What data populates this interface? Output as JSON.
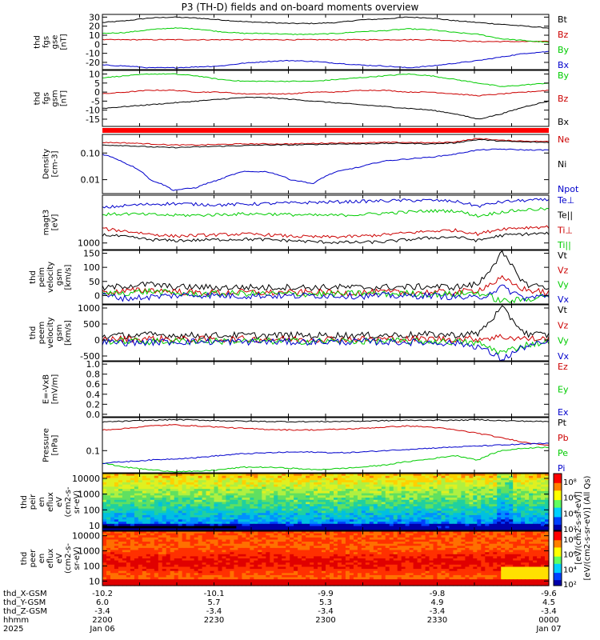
{
  "title": "P3 (TH-D) fields and on-board moments overview",
  "chart_data": [
    {
      "type": "line",
      "ylabel": [
        "thd",
        "fgs",
        "gse",
        "[nT]"
      ],
      "ylim": [
        -28,
        33
      ],
      "log": false,
      "ticks": [
        30,
        20,
        10,
        0,
        -10,
        -20
      ],
      "tick_labels": [
        "30",
        "20",
        "10",
        "0",
        "-10",
        "-20"
      ],
      "legend": [
        "Bt",
        "Bz",
        "By",
        "Bx"
      ],
      "series": [
        {
          "name": "Bt",
          "color": "#000000",
          "values": [
            24,
            26,
            29,
            30,
            29,
            27,
            25,
            24,
            23,
            23,
            24,
            27,
            28,
            30,
            29,
            26,
            24,
            22,
            20,
            18
          ]
        },
        {
          "name": "Bz",
          "color": "#cc0000",
          "values": [
            5,
            5,
            5,
            5,
            5,
            5,
            5,
            5,
            5,
            5,
            5,
            5,
            5,
            5,
            5,
            4,
            3,
            3,
            3,
            3
          ]
        },
        {
          "name": "By",
          "color": "#00cc00",
          "values": [
            12,
            13,
            16,
            18,
            17,
            14,
            12,
            12,
            11,
            11,
            12,
            14,
            15,
            17,
            16,
            13,
            11,
            6,
            4,
            2
          ]
        },
        {
          "name": "Bx",
          "color": "#0000cc",
          "values": [
            -23,
            -24,
            -26,
            -26,
            -25,
            -24,
            -21,
            -19,
            -18,
            -19,
            -21,
            -23,
            -24,
            -26,
            -24,
            -21,
            -18,
            -14,
            -10,
            -8
          ]
        }
      ]
    },
    {
      "type": "line",
      "ylabel": [
        "thd",
        "fgs",
        "gsm",
        "[nT]"
      ],
      "ylim": [
        -19,
        12
      ],
      "log": false,
      "ticks": [
        10,
        5,
        0,
        -5,
        -10,
        -15
      ],
      "tick_labels": [
        "10",
        "5",
        "0",
        "-5",
        "-10",
        "-15"
      ],
      "legend": [
        "By",
        "Bz",
        "Bx"
      ],
      "series": [
        {
          "name": "By",
          "color": "#00cc00",
          "values": [
            8,
            9,
            10,
            10,
            9,
            7,
            6,
            6,
            6,
            6,
            7,
            8,
            9,
            10,
            9,
            7,
            5,
            3,
            4,
            5
          ]
        },
        {
          "name": "Bz",
          "color": "#cc0000",
          "values": [
            -1,
            0,
            1,
            1,
            0,
            0,
            -1,
            -1,
            -1,
            0,
            0,
            1,
            1,
            0,
            0,
            -1,
            -2,
            -1,
            0,
            1
          ]
        },
        {
          "name": "Bx",
          "color": "#000000",
          "values": [
            -9,
            -8,
            -7,
            -6,
            -5,
            -4,
            -3,
            -3,
            -4,
            -5,
            -6,
            -7,
            -8,
            -9,
            -10,
            -12,
            -15,
            -12,
            -8,
            -5
          ]
        }
      ]
    },
    {
      "type": "line",
      "ylabel": [
        "Density",
        "[cm-3]"
      ],
      "ylim": [
        0.003,
        0.5
      ],
      "log": true,
      "ticks": [
        0.1,
        0.01
      ],
      "tick_labels": [
        "0.10",
        "0.01"
      ],
      "legend": [
        "Ne",
        "Ni",
        "Npot"
      ],
      "series": [
        {
          "name": "Ne",
          "color": "#cc0000",
          "values": [
            0.25,
            0.24,
            0.22,
            0.2,
            0.2,
            0.21,
            0.22,
            0.22,
            0.22,
            0.23,
            0.24,
            0.24,
            0.25,
            0.25,
            0.24,
            0.26,
            0.35,
            0.3,
            0.28,
            0.27
          ]
        },
        {
          "name": "Ni",
          "color": "#000000",
          "values": [
            0.2,
            0.19,
            0.17,
            0.16,
            0.17,
            0.18,
            0.19,
            0.2,
            0.2,
            0.21,
            0.22,
            0.22,
            0.23,
            0.23,
            0.22,
            0.24,
            0.32,
            0.28,
            0.26,
            0.25
          ]
        },
        {
          "name": "Npot",
          "color": "#0000cc",
          "values": [
            0.09,
            0.04,
            0.01,
            0.004,
            0.005,
            0.01,
            0.02,
            0.02,
            0.01,
            0.007,
            0.02,
            0.03,
            0.05,
            0.06,
            0.07,
            0.09,
            0.13,
            0.14,
            0.13,
            0.13
          ]
        }
      ]
    },
    {
      "type": "line",
      "ylabel": [
        "magt3",
        "[eV]"
      ],
      "ylim": [
        600,
        40000
      ],
      "log": true,
      "ticks": [
        1000
      ],
      "tick_labels": [
        "1000"
      ],
      "legend": [
        "Te⊥",
        "Te||",
        "Ti⊥",
        "Ti||"
      ],
      "series": [
        {
          "name": "Te⊥",
          "color": "#0000cc",
          "values": [
            15000,
            18000,
            20000,
            21000,
            20000,
            19000,
            20000,
            21000,
            22000,
            23000,
            24000,
            25000,
            26000,
            27000,
            27000,
            25000,
            17000,
            24000,
            27000,
            28000
          ]
        },
        {
          "name": "Te||",
          "color": "#000000",
          "values": [
            1900,
            1600,
            1300,
            1200,
            1250,
            1300,
            1350,
            1300,
            1200,
            1100,
            1050,
            1050,
            1100,
            1300,
            1500,
            1600,
            1200,
            1800,
            2000,
            2100
          ]
        },
        {
          "name": "Ti⊥",
          "color": "#cc0000",
          "values": [
            3000,
            2500,
            2000,
            1700,
            1800,
            1900,
            2000,
            1900,
            1700,
            1600,
            1600,
            1700,
            1900,
            2200,
            2500,
            2700,
            2000,
            3000,
            3300,
            3500
          ]
        },
        {
          "name": "Ti||",
          "color": "#00cc00",
          "values": [
            9000,
            9500,
            9000,
            8500,
            8500,
            9000,
            9500,
            9500,
            9000,
            8500,
            8500,
            9000,
            10000,
            11000,
            12000,
            12000,
            8000,
            11000,
            13000,
            14000
          ]
        }
      ]
    },
    {
      "type": "line",
      "ylabel": [
        "thd",
        "peim",
        "velocity",
        "gsm",
        "[km/s]"
      ],
      "ylim": [
        -30,
        160
      ],
      "log": false,
      "ticks": [
        150,
        100,
        50,
        0
      ],
      "tick_labels": [
        "150",
        "100",
        "50",
        "0"
      ],
      "legend": [
        "Vt",
        "Vz",
        "Vy",
        "Vx"
      ],
      "series": [
        {
          "name": "Vt",
          "color": "#000000",
          "values": [
            25,
            35,
            40,
            30,
            30,
            28,
            30,
            28,
            30,
            28,
            30,
            28,
            30,
            30,
            32,
            30,
            40,
            150,
            40,
            30
          ]
        },
        {
          "name": "Vz",
          "color": "#cc0000",
          "values": [
            10,
            15,
            20,
            15,
            10,
            10,
            12,
            10,
            10,
            12,
            10,
            10,
            12,
            10,
            12,
            10,
            20,
            60,
            20,
            10
          ]
        },
        {
          "name": "Vy",
          "color": "#00cc00",
          "values": [
            5,
            10,
            15,
            8,
            5,
            6,
            8,
            5,
            6,
            6,
            5,
            8,
            6,
            8,
            5,
            5,
            10,
            -20,
            -15,
            5
          ]
        },
        {
          "name": "Vx",
          "color": "#0000cc",
          "values": [
            0,
            -10,
            -5,
            0,
            2,
            0,
            -2,
            0,
            -2,
            0,
            0,
            -2,
            0,
            -2,
            0,
            -5,
            -10,
            30,
            -10,
            0
          ]
        }
      ]
    },
    {
      "type": "line",
      "ylabel": [
        "thd",
        "peem",
        "velocity",
        "gsm",
        "[km/s]"
      ],
      "ylim": [
        -650,
        1100
      ],
      "log": false,
      "ticks": [
        1000,
        500,
        0,
        -500
      ],
      "tick_labels": [
        "1000",
        "500",
        "0",
        "-500"
      ],
      "legend": [
        "Vt",
        "Vz",
        "Vy",
        "Vx"
      ],
      "series": [
        {
          "name": "Vt",
          "color": "#000000",
          "values": [
            120,
            140,
            160,
            150,
            140,
            140,
            150,
            140,
            150,
            140,
            150,
            140,
            150,
            160,
            170,
            160,
            200,
            1000,
            200,
            150
          ]
        },
        {
          "name": "Vz",
          "color": "#cc0000",
          "values": [
            20,
            30,
            40,
            30,
            20,
            25,
            30,
            25,
            30,
            25,
            30,
            25,
            30,
            30,
            35,
            30,
            40,
            100,
            40,
            30
          ]
        },
        {
          "name": "Vy",
          "color": "#00cc00",
          "values": [
            -40,
            -30,
            -50,
            -40,
            -30,
            -35,
            -40,
            -35,
            -40,
            -35,
            -40,
            -35,
            -40,
            -40,
            -45,
            -60,
            -100,
            -400,
            -150,
            -60
          ]
        },
        {
          "name": "Vx",
          "color": "#0000cc",
          "values": [
            -60,
            -80,
            -70,
            -60,
            -50,
            -55,
            -60,
            -55,
            -60,
            -55,
            -60,
            -55,
            -60,
            -70,
            -80,
            -90,
            -200,
            -600,
            -200,
            -80
          ]
        }
      ]
    },
    {
      "type": "line",
      "ylabel": [
        "E=-VxB",
        "[mV/m]"
      ],
      "ylim": [
        -0.05,
        1.05
      ],
      "log": false,
      "ticks": [
        1.0,
        0.8,
        0.6,
        0.4,
        0.2,
        0.0
      ],
      "tick_labels": [
        "1.0",
        "0.8",
        "0.6",
        "0.4",
        "0.2",
        "0.0"
      ],
      "legend": [
        "Ez",
        "Ey",
        "Ex"
      ],
      "series": []
    },
    {
      "type": "line",
      "ylabel": [
        "Pressure",
        "[nPa]"
      ],
      "ylim": [
        0.02,
        1.1
      ],
      "log": true,
      "ticks": [
        0.1
      ],
      "tick_labels": [
        "0.1"
      ],
      "legend": [
        "Pt",
        "Pb",
        "Pe",
        "Pi"
      ],
      "series": [
        {
          "name": "Pt",
          "color": "#000000",
          "values": [
            0.8,
            0.85,
            0.9,
            0.95,
            0.92,
            0.88,
            0.85,
            0.83,
            0.82,
            0.82,
            0.83,
            0.85,
            0.88,
            0.9,
            0.92,
            0.9,
            0.95,
            0.88,
            0.85,
            0.82
          ]
        },
        {
          "name": "Pb",
          "color": "#cc0000",
          "values": [
            0.45,
            0.5,
            0.6,
            0.65,
            0.6,
            0.55,
            0.5,
            0.47,
            0.45,
            0.45,
            0.47,
            0.5,
            0.55,
            0.6,
            0.55,
            0.45,
            0.35,
            0.25,
            0.18,
            0.15
          ]
        },
        {
          "name": "Pe",
          "color": "#00cc00",
          "values": [
            0.04,
            0.03,
            0.025,
            0.022,
            0.022,
            0.025,
            0.03,
            0.03,
            0.028,
            0.025,
            0.027,
            0.03,
            0.035,
            0.045,
            0.055,
            0.07,
            0.05,
            0.1,
            0.12,
            0.13
          ]
        },
        {
          "name": "Pi",
          "color": "#0000cc",
          "values": [
            0.04,
            0.045,
            0.05,
            0.055,
            0.06,
            0.07,
            0.08,
            0.085,
            0.09,
            0.09,
            0.085,
            0.09,
            0.1,
            0.11,
            0.12,
            0.13,
            0.14,
            0.15,
            0.16,
            0.17
          ]
        }
      ]
    },
    {
      "type": "heatmap",
      "ylabel": [
        "thd",
        "peir",
        "en",
        "eflux",
        "eV",
        "(cm2-s-",
        "sr-eV)"
      ],
      "ylim": [
        5,
        20000
      ],
      "log": true,
      "ticks": [
        10000,
        1000,
        100,
        10
      ],
      "tick_labels": [
        "10000",
        "1000",
        "100",
        "10"
      ]
    },
    {
      "type": "heatmap",
      "ylabel": [
        "thd",
        "peer",
        "en",
        "eflux",
        "eV",
        "(cm2-s-",
        "sr-eV)"
      ],
      "ylim": [
        5,
        20000
      ],
      "log": true,
      "ticks": [
        10000,
        1000,
        100,
        10
      ],
      "tick_labels": [
        "10000",
        "1000",
        "100",
        "10"
      ]
    }
  ],
  "colorbar": {
    "label": "[eV/(cm2-s-sr-eV)] (All Qs)",
    "overlap_label": "[eV/(cm2-s-sr-eV)]",
    "upper_ticks": [
      "10⁸",
      "10⁶",
      "10⁴",
      "10²"
    ],
    "lower_ticks": [
      "10⁸",
      "10⁶",
      "10⁴",
      "10²"
    ]
  },
  "x_axis": {
    "rows": [
      {
        "label": "thd_X-GSM",
        "values": [
          "-10.2",
          "-10.1",
          "-9.9",
          "-9.8",
          "-9.6"
        ]
      },
      {
        "label": "thd_Y-GSM",
        "values": [
          "6.0",
          "5.7",
          "5.3",
          "4.9",
          "4.5"
        ]
      },
      {
        "label": "thd_Z-GSM",
        "values": [
          "-3.4",
          "-3.4",
          "-3.4",
          "-3.4",
          "-3.4"
        ]
      },
      {
        "label": "hhmm",
        "values": [
          "2200",
          "2230",
          "2300",
          "2330",
          "0000"
        ]
      },
      {
        "label": "2025",
        "values": [
          "Jan 06",
          "",
          "",
          "",
          "Jan 07"
        ]
      }
    ]
  }
}
